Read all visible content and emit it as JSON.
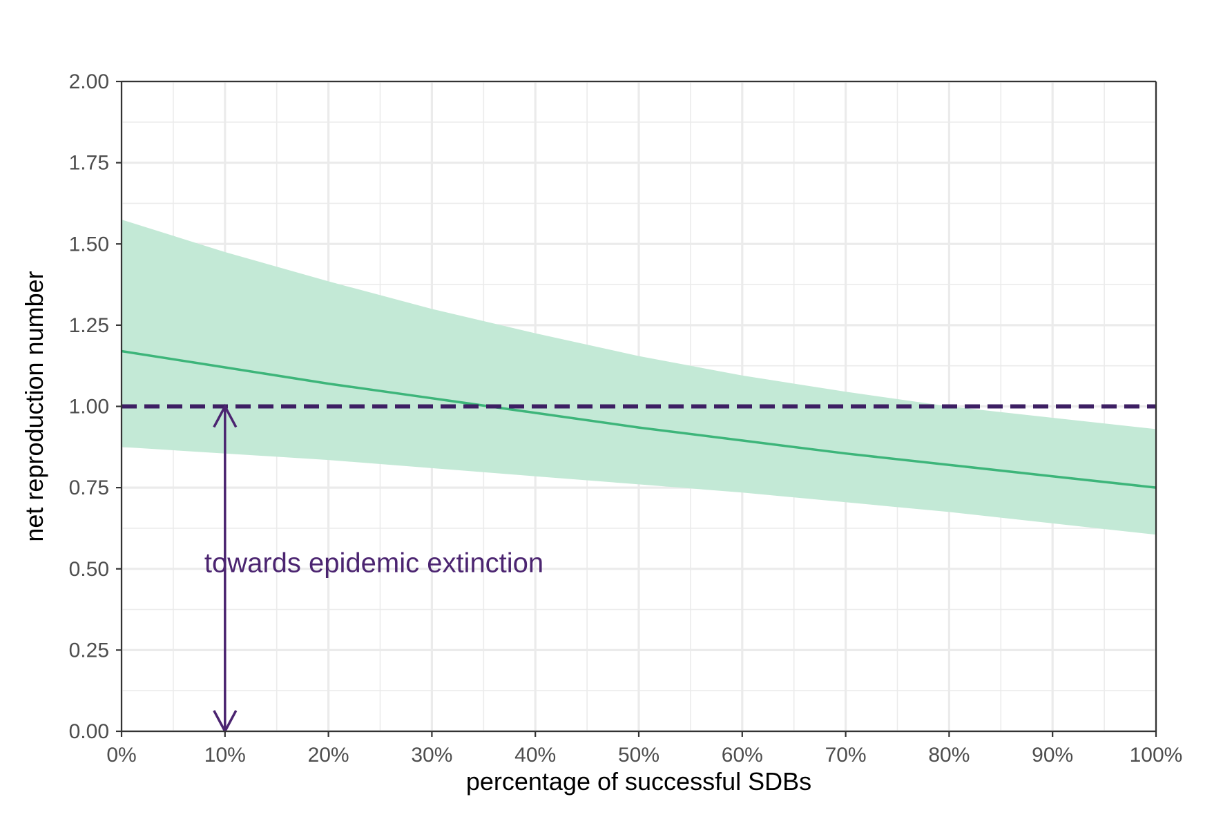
{
  "chart_data": {
    "type": "line",
    "xlabel": "percentage of successful SDBs",
    "ylabel": "net reproduction number",
    "xlim": [
      0,
      1
    ],
    "ylim": [
      0,
      2
    ],
    "x_tick_values": [
      0,
      0.1,
      0.2,
      0.3,
      0.4,
      0.5,
      0.6,
      0.7,
      0.8,
      0.9,
      1.0
    ],
    "x_tick_labels": [
      "0%",
      "10%",
      "20%",
      "30%",
      "40%",
      "50%",
      "60%",
      "70%",
      "80%",
      "90%",
      "100%"
    ],
    "y_tick_values": [
      0,
      0.25,
      0.5,
      0.75,
      1.0,
      1.25,
      1.5,
      1.75,
      2.0
    ],
    "y_tick_labels": [
      "0.00",
      "0.25",
      "0.50",
      "0.75",
      "1.00",
      "1.25",
      "1.50",
      "1.75",
      "2.00"
    ],
    "grid": true,
    "legend": "none",
    "series": [
      {
        "kind": "line",
        "x": [
          0,
          0.1,
          0.2,
          0.3,
          0.4,
          0.5,
          0.6,
          0.7,
          0.8,
          0.9,
          1.0
        ],
        "y": [
          1.17,
          1.12,
          1.07,
          1.025,
          0.98,
          0.935,
          0.895,
          0.855,
          0.82,
          0.785,
          0.75
        ]
      },
      {
        "kind": "ribbon",
        "x": [
          0,
          0.1,
          0.2,
          0.3,
          0.4,
          0.5,
          0.6,
          0.7,
          0.8,
          0.9,
          1.0
        ],
        "lower": [
          0.875,
          0.855,
          0.835,
          0.81,
          0.785,
          0.76,
          0.735,
          0.705,
          0.675,
          0.64,
          0.605
        ],
        "upper": [
          1.575,
          1.475,
          1.385,
          1.3,
          1.225,
          1.155,
          1.095,
          1.045,
          1.0,
          0.965,
          0.93
        ]
      }
    ],
    "reference_line": {
      "y": 1.0,
      "style": "dashed"
    },
    "arrow": {
      "x": 0.1,
      "y_from": 0.0,
      "y_to": 1.0
    },
    "annotation": {
      "text": "towards epidemic extinction",
      "x": 0.08,
      "y": 0.49
    },
    "colors": {
      "line": "#3db57a",
      "ribbon": "#c3e9d6",
      "reference": "#3d1f63",
      "arrow": "#4b2470",
      "annotation": "#4b2470",
      "grid": "#ebebeb",
      "axis": "#333333",
      "tick_label": "#4d4d4d"
    }
  }
}
